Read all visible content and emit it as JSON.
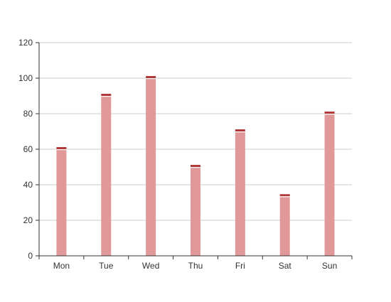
{
  "chart_data": {
    "type": "bar",
    "title": "",
    "xlabel": "",
    "ylabel": "",
    "categories": [
      "Mon",
      "Tue",
      "Wed",
      "Thu",
      "Fri",
      "Sat",
      "Sun"
    ],
    "series": [
      {
        "values": [
          60,
          90,
          100,
          50,
          70,
          33.5,
          80
        ],
        "color": "#e09898",
        "top_accent_color": "#b03a3a"
      }
    ],
    "ylim": [
      0,
      120
    ],
    "yticks": [
      0,
      20,
      40,
      60,
      80,
      100,
      120
    ],
    "grid": true,
    "legend": "none"
  }
}
